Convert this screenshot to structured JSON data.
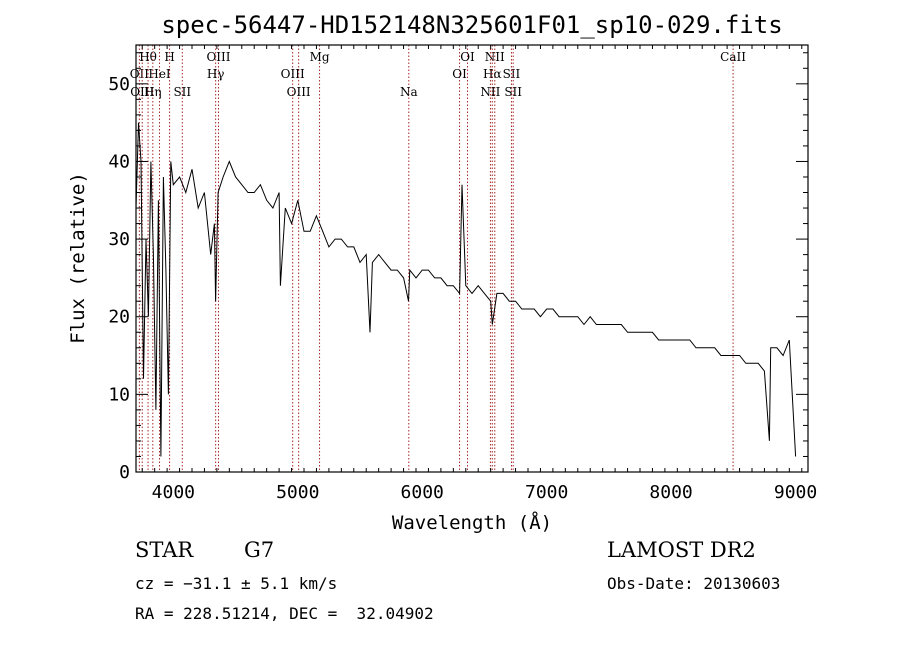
{
  "chart_data": {
    "type": "line",
    "title": "spec-56447-HD152148N325601F01_sp10-029.fits",
    "xlabel": "Wavelength (Å)",
    "ylabel": "Flux (relative)",
    "xlim": [
      3700,
      9100
    ],
    "ylim": [
      0,
      55
    ],
    "xticks": [
      4000,
      5000,
      6000,
      7000,
      8000,
      9000
    ],
    "yticks": [
      0,
      10,
      20,
      30,
      40,
      50
    ],
    "grid": false,
    "series": [
      {
        "color": "#000000",
        "x": [
          3700,
          3720,
          3740,
          3760,
          3780,
          3800,
          3820,
          3840,
          3860,
          3880,
          3900,
          3920,
          3940,
          3960,
          3980,
          4000,
          4050,
          4100,
          4150,
          4200,
          4250,
          4300,
          4330,
          4340,
          4360,
          4400,
          4450,
          4500,
          4550,
          4600,
          4650,
          4700,
          4750,
          4800,
          4850,
          4860,
          4900,
          4950,
          5000,
          5050,
          5100,
          5150,
          5200,
          5250,
          5300,
          5350,
          5400,
          5450,
          5500,
          5550,
          5580,
          5600,
          5650,
          5700,
          5750,
          5800,
          5850,
          5890,
          5900,
          5950,
          6000,
          6050,
          6100,
          6150,
          6200,
          6250,
          6300,
          6320,
          6350,
          6400,
          6450,
          6500,
          6550,
          6563,
          6600,
          6650,
          6700,
          6750,
          6800,
          6850,
          6900,
          6950,
          7000,
          7050,
          7100,
          7150,
          7200,
          7250,
          7300,
          7350,
          7400,
          7450,
          7500,
          7550,
          7600,
          7650,
          7700,
          7750,
          7800,
          7850,
          7900,
          7950,
          8000,
          8050,
          8100,
          8150,
          8200,
          8250,
          8300,
          8350,
          8400,
          8450,
          8500,
          8550,
          8600,
          8650,
          8700,
          8750,
          8790,
          8800,
          8850,
          8900,
          8950,
          9000
        ],
        "y": [
          34,
          45,
          40,
          12,
          30,
          20,
          40,
          28,
          8,
          35,
          2,
          38,
          26,
          10,
          40,
          37,
          38,
          36,
          39,
          34,
          36,
          28,
          32,
          22,
          36,
          38,
          40,
          38,
          37,
          36,
          36,
          37,
          35,
          34,
          36,
          24,
          34,
          32,
          35,
          31,
          31,
          33,
          31,
          29,
          30,
          30,
          29,
          29,
          27,
          28,
          18,
          27,
          28,
          27,
          26,
          26,
          25,
          22,
          26,
          25,
          26,
          26,
          25,
          25,
          24,
          24,
          23,
          37,
          24,
          23,
          24,
          23,
          22,
          19,
          23,
          23,
          22,
          22,
          21,
          21,
          21,
          20,
          21,
          21,
          20,
          20,
          20,
          20,
          19,
          20,
          19,
          19,
          19,
          19,
          19,
          18,
          18,
          18,
          18,
          18,
          17,
          17,
          17,
          17,
          17,
          17,
          16,
          16,
          16,
          16,
          15,
          15,
          15,
          15,
          14,
          14,
          14,
          13,
          4,
          16,
          16,
          15,
          17,
          2
        ]
      }
    ],
    "lines": [
      {
        "x": 3727,
        "label": "OII",
        "row": 1
      },
      {
        "x": 3750,
        "label": "OIII",
        "row": 2
      },
      {
        "x": 3797,
        "label": "Hθ",
        "row": 0
      },
      {
        "x": 3889,
        "label": "HeI",
        "row": 1
      },
      {
        "x": 3835,
        "label": "Hη",
        "row": 2
      },
      {
        "x": 3970,
        "label": "H",
        "row": 0
      },
      {
        "x": 4072,
        "label": "SII",
        "row": 2
      },
      {
        "x": 4363,
        "label": "OIII",
        "row": 0
      },
      {
        "x": 4340,
        "label": "Hγ",
        "row": 1
      },
      {
        "x": 4959,
        "label": "OIII",
        "row": 1
      },
      {
        "x": 5007,
        "label": "OIII",
        "row": 2
      },
      {
        "x": 5175,
        "label": "Mg",
        "row": 0
      },
      {
        "x": 5892,
        "label": "Na",
        "row": 2
      },
      {
        "x": 6364,
        "label": "OI",
        "row": 0
      },
      {
        "x": 6300,
        "label": "OI",
        "row": 1
      },
      {
        "x": 6583,
        "label": "NII",
        "row": 0
      },
      {
        "x": 6563,
        "label": "Hα",
        "row": 1
      },
      {
        "x": 6548,
        "label": "NII",
        "row": 2
      },
      {
        "x": 6717,
        "label": "SII",
        "row": 1
      },
      {
        "x": 6731,
        "label": "SII",
        "row": 2
      },
      {
        "x": 8498,
        "label": "CaII",
        "row": 0
      }
    ]
  },
  "info": {
    "object_class": "STAR",
    "subclass": "G7",
    "survey": "LAMOST DR2",
    "redshift": "cz = −31.1 ± 5.1 km/s",
    "obs_date": "Obs-Date: 20130603",
    "coords": "RA = 228.51214, DEC =  32.04902"
  }
}
